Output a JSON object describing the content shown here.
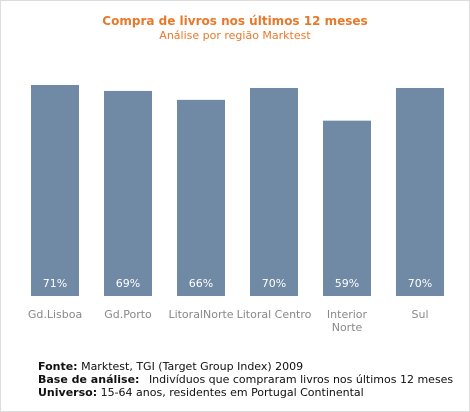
{
  "colors": {
    "bar": "#7089a5",
    "title": "#e8782a",
    "value_label": "#ffffff",
    "axis_label": "#888888"
  },
  "chart_data": {
    "type": "bar",
    "title": "Compra de livros nos últimos 12 meses",
    "subtitle": "Análise por região Marktest",
    "categories": [
      "Gd.Lisboa",
      "Gd.Porto",
      "LitoralNorte",
      "Litoral Centro",
      "Interior Norte",
      "Sul"
    ],
    "category_lines": [
      [
        "Gd.Lisboa"
      ],
      [
        "Gd.Porto"
      ],
      [
        "LitoralNorte"
      ],
      [
        "Litoral Centro"
      ],
      [
        "Interior",
        "Norte"
      ],
      [
        "Sul"
      ]
    ],
    "values": [
      71,
      69,
      66,
      70,
      59,
      70
    ],
    "value_labels": [
      "71%",
      "69%",
      "66%",
      "70%",
      "59%",
      "70%"
    ],
    "ylim": [
      0,
      71
    ],
    "grid": false,
    "legend": "none"
  },
  "footer": {
    "fonte_label": "Fonte:",
    "fonte_text": "Marktest, TGI (Target Group Index) 2009",
    "base_label": "Base de análise:",
    "base_text": "Indivíduos que compraram livros nos últimos 12 meses",
    "universo_label": "Universo:",
    "universo_text": "15-64 anos, residentes em Portugal Continental"
  }
}
